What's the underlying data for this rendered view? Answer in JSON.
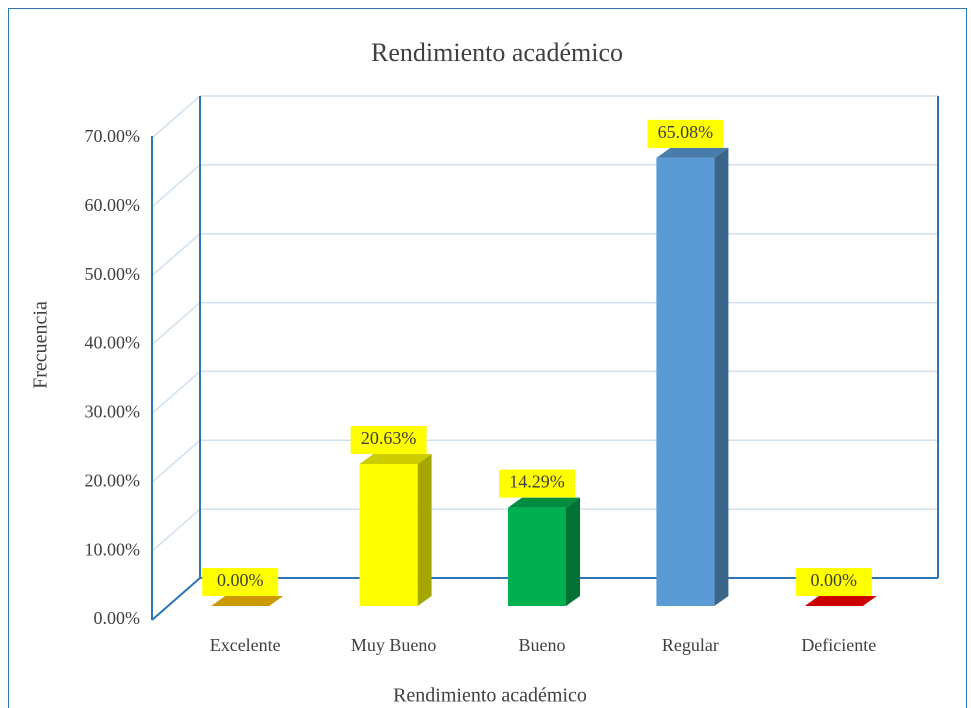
{
  "chart_data": {
    "type": "bar3d",
    "title": "Rendimiento académico",
    "x_label": "Rendimiento académico",
    "y_label": "Frecuencia",
    "categories": [
      "Excelente",
      "Muy Bueno",
      "Bueno",
      "Regular",
      "Deficiente"
    ],
    "values": [
      0,
      20.63,
      14.29,
      65.08,
      0
    ],
    "value_labels": [
      "0.00%",
      "20.63%",
      "14.29%",
      "65.08%",
      "0.00%"
    ],
    "colors": [
      "#ffc000",
      "#ffff00",
      "#00b050",
      "#5b9bd5",
      "#ff0000"
    ],
    "ylim": [
      0,
      70
    ],
    "yticks": [
      {
        "value": 0,
        "label": "0.00%"
      },
      {
        "value": 10,
        "label": "10.00%"
      },
      {
        "value": 20,
        "label": "20.00%"
      },
      {
        "value": 30,
        "label": "30.00%"
      },
      {
        "value": 40,
        "label": "40.00%"
      },
      {
        "value": 50,
        "label": "50.00%"
      },
      {
        "value": 60,
        "label": "60.00%"
      },
      {
        "value": 70,
        "label": "70.00%"
      }
    ],
    "grid": true
  }
}
